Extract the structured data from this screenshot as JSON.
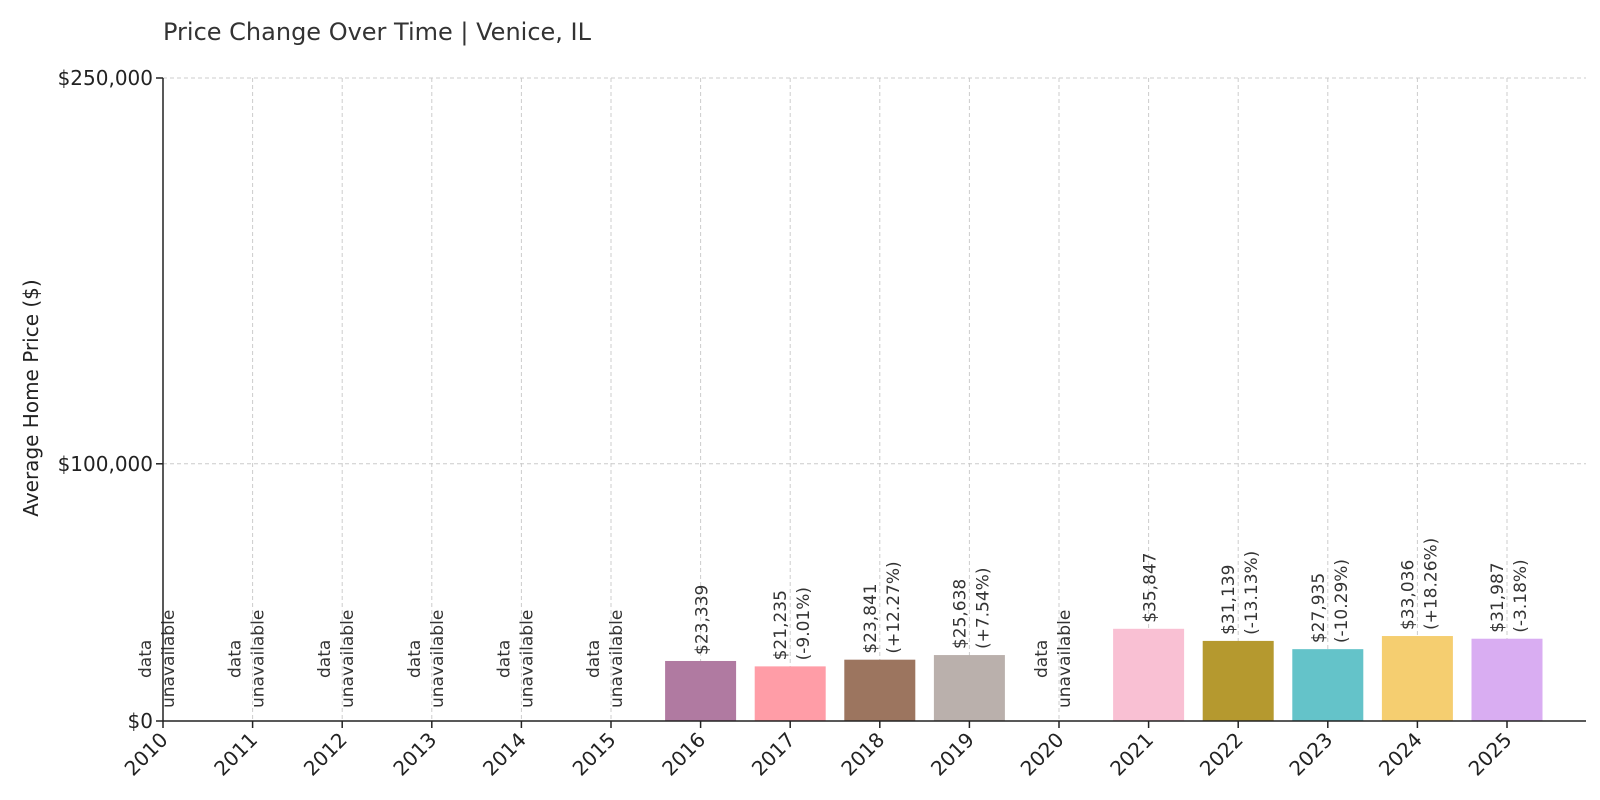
{
  "chart_data": {
    "type": "bar",
    "title": "Price Change Over Time | Venice, IL",
    "xlabel": "",
    "ylabel": "Average Home Price ($)",
    "ylim": [
      0,
      250000
    ],
    "yticks": [
      {
        "value": 0,
        "label": "$0"
      },
      {
        "value": 100000,
        "label": "$100,000"
      },
      {
        "value": 250000,
        "label": "$250,000"
      }
    ],
    "grid": true,
    "categories": [
      "2016",
      "2017",
      "2018",
      "2019",
      "2021",
      "2022",
      "2023",
      "2024",
      "2025"
    ],
    "x_tick_labels": [
      "2010",
      "2011",
      "2012",
      "2013",
      "2014",
      "2015",
      "2016",
      "2017",
      "2018",
      "2019",
      "2020",
      "2021",
      "2022",
      "2023",
      "2024",
      "2025"
    ],
    "bars": [
      {
        "year": 2016,
        "value": 23339,
        "label": "$23,339",
        "change": "",
        "color": "#b07aa1"
      },
      {
        "year": 2017,
        "value": 21235,
        "label": "$21,235",
        "change": "(-9.01%)",
        "color": "#ff9da7"
      },
      {
        "year": 2018,
        "value": 23841,
        "label": "$23,841",
        "change": "(+12.27%)",
        "color": "#9c755f"
      },
      {
        "year": 2019,
        "value": 25638,
        "label": "$25,638",
        "change": "(+7.54%)",
        "color": "#bab0ac"
      },
      {
        "year": 2021,
        "value": 35847,
        "label": "$35,847",
        "change": "",
        "color": "#f9c0d3"
      },
      {
        "year": 2022,
        "value": 31139,
        "label": "$31,139",
        "change": "(-13.13%)",
        "color": "#b5992f"
      },
      {
        "year": 2023,
        "value": 27935,
        "label": "$27,935",
        "change": "(-10.29%)",
        "color": "#64c3c9"
      },
      {
        "year": 2024,
        "value": 33036,
        "label": "$33,036",
        "change": "(+18.26%)",
        "color": "#f5ce70"
      },
      {
        "year": 2025,
        "value": 31987,
        "label": "$31,987",
        "change": "(-3.18%)",
        "color": "#d9adf2"
      }
    ],
    "unavailable": [
      {
        "year": 2010,
        "line1": "data",
        "line2": "unavailable"
      },
      {
        "year": 2011,
        "line1": "data",
        "line2": "unavailable"
      },
      {
        "year": 2012,
        "line1": "data",
        "line2": "unavailable"
      },
      {
        "year": 2013,
        "line1": "data",
        "line2": "unavailable"
      },
      {
        "year": 2014,
        "line1": "data",
        "line2": "unavailable"
      },
      {
        "year": 2015,
        "line1": "data",
        "line2": "unavailable"
      },
      {
        "year": 2020,
        "line1": "data",
        "line2": "unavailable"
      }
    ]
  }
}
